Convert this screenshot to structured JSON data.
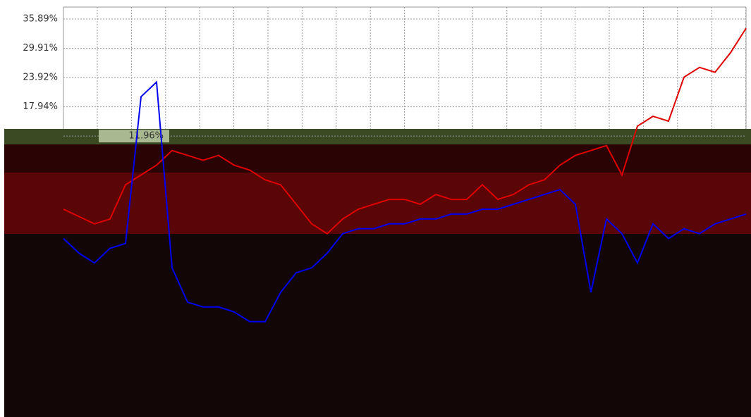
{
  "chart_data": {
    "type": "line",
    "series": [
      {
        "color": "#e00000",
        "values": [
          -3,
          -4.5,
          -6,
          -5,
          2,
          4,
          6,
          9,
          8,
          7,
          8,
          6,
          5,
          3,
          2,
          -2,
          -6,
          -8,
          -5,
          -3,
          -2,
          -1,
          -1,
          -2,
          0,
          -1,
          -1,
          2,
          -1,
          0,
          2,
          3,
          6,
          8,
          9,
          10,
          4,
          14,
          16,
          15,
          24,
          26,
          25,
          29,
          34
        ]
      },
      {
        "color": "#0000ee",
        "values": [
          -9,
          -12,
          -14,
          -11,
          -10,
          20,
          23,
          -15,
          -22,
          -23,
          -23,
          -24,
          -26,
          -26,
          -20,
          -16,
          -15,
          -12,
          -8,
          -7,
          -7,
          -6,
          -6,
          -5,
          -5,
          -4,
          -4,
          -3,
          -3,
          -2,
          -1,
          0,
          1,
          -2,
          -20,
          -5,
          -8,
          -14,
          -6,
          -9,
          -7,
          -8,
          -6,
          -5,
          -4
        ]
      }
    ],
    "ylim": [
      -45.5,
      38.34
    ],
    "yticks": [
      {
        "value": 35.89,
        "label": "35.89%"
      },
      {
        "value": 29.91,
        "label": "29.91%"
      },
      {
        "value": 23.92,
        "label": "23.92%"
      },
      {
        "value": 17.94,
        "label": "17.94%"
      },
      {
        "value": 11.96,
        "label": "11.96%"
      }
    ],
    "grid": true
  }
}
